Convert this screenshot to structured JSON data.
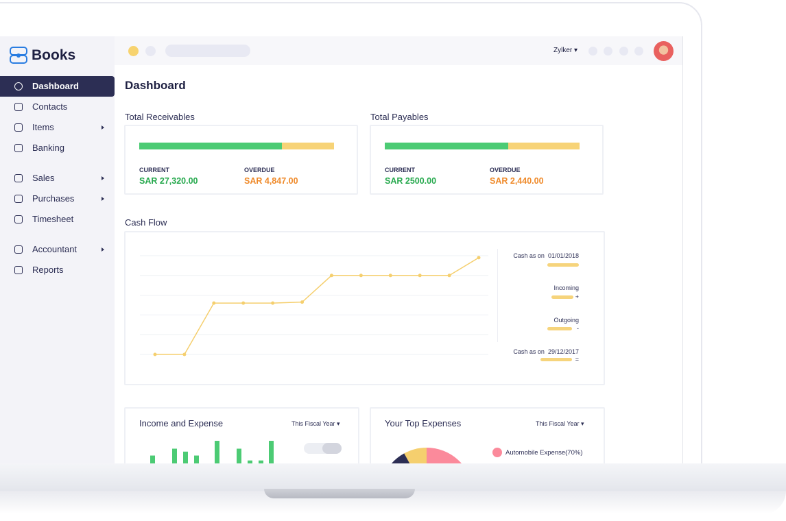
{
  "brand": "Books",
  "org": "Zylker",
  "nav": [
    "Dashboard",
    "Contacts",
    "Items",
    "Banking",
    "Sales",
    "Purchases",
    "Timesheet",
    "Accountant",
    "Reports"
  ],
  "page_title": "Dashboard",
  "receivables": {
    "title": "Total Receivables",
    "current_label": "CURRENT",
    "current": "SAR 27,320.00",
    "overdue_label": "OVERDUE",
    "overdue": "SAR 4,847.00"
  },
  "payables": {
    "title": "Total Payables",
    "current_label": "CURRENT",
    "current": "SAR 2500.00",
    "overdue_label": "OVERDUE",
    "overdue": "SAR 2,440.00"
  },
  "cash_flow": {
    "title": "Cash Flow",
    "legend": {
      "opening_label": "Cash as on",
      "opening_date": "01/01/2018",
      "incoming": "Incoming",
      "incoming_sign": "+",
      "outgoing": "Outgoing",
      "outgoing_sign": "-",
      "closing_label": "Cash as on",
      "closing_date": "29/12/2017",
      "closing_sign": "="
    },
    "chart_data": {
      "type": "line",
      "color": "#f5cf6e",
      "values": [
        0,
        0,
        2.6,
        2.6,
        2.6,
        2.65,
        4,
        4,
        4,
        4,
        4,
        4.9
      ],
      "ylim": [
        0,
        5
      ]
    }
  },
  "income_expense": {
    "title": "Income and Expense",
    "period": "This Fiscal Year",
    "chart_data": {
      "type": "bar",
      "color": "#4ccb74",
      "values": [
        8,
        15,
        12,
        8,
        23,
        15,
        3,
        3,
        23
      ],
      "ylim": [
        0,
        30
      ]
    }
  },
  "top_expenses": {
    "title": "Your Top Expenses",
    "period": "This Fiscal Year",
    "chart_data": {
      "type": "pie",
      "categories": [
        "Automobile Expense(70%)",
        null,
        null
      ],
      "values": [
        70,
        8,
        10
      ],
      "colors": [
        "#fb8a9b",
        "#f5cf6e",
        "#2c2e54"
      ]
    }
  }
}
